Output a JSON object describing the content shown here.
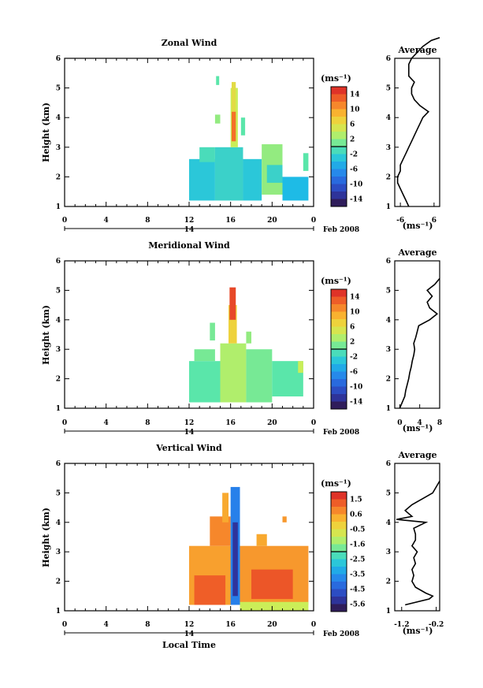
{
  "figure": {
    "x_label": "Local Time",
    "y_label": "Height (km)",
    "x_ticks": [
      "0",
      "4",
      "8",
      "12",
      "16",
      "20",
      "0"
    ],
    "date_day": "14",
    "date_month": "Feb 2008",
    "average_title": "Average",
    "unit": "(ms⁻¹)"
  },
  "chart_data": [
    {
      "type": "heatmap",
      "title": "Zonal Wind",
      "xlabel": "Local Time",
      "ylabel": "Height (km)",
      "xlim": [
        0,
        24
      ],
      "ylim": [
        1,
        6
      ],
      "y_ticks": [
        1,
        2,
        3,
        4,
        5,
        6
      ],
      "colorbar": {
        "unit": "(ms⁻¹)",
        "ticks": [
          "14",
          "10",
          "6",
          "2",
          "-2",
          "-6",
          "-10",
          "-14"
        ],
        "range": [
          -16,
          16
        ]
      },
      "blocks": [
        {
          "t0": 12.0,
          "t1": 14.5,
          "h0": 1.2,
          "h1": 2.6,
          "v": -3
        },
        {
          "t0": 14.5,
          "t1": 17.2,
          "h0": 1.2,
          "h1": 3.0,
          "v": -2
        },
        {
          "t0": 13.0,
          "t1": 14.5,
          "h0": 2.5,
          "h1": 3.0,
          "v": -1
        },
        {
          "t0": 16.0,
          "t1": 16.7,
          "h0": 3.0,
          "h1": 5.0,
          "v": 4
        },
        {
          "t0": 16.1,
          "t1": 16.5,
          "h0": 3.2,
          "h1": 4.2,
          "v": 12
        },
        {
          "t0": 16.1,
          "t1": 16.5,
          "h0": 4.2,
          "h1": 5.2,
          "v": 6
        },
        {
          "t0": 17.2,
          "t1": 19.0,
          "h0": 1.2,
          "h1": 2.6,
          "v": -3
        },
        {
          "t0": 19.0,
          "t1": 21.0,
          "h0": 1.4,
          "h1": 3.1,
          "v": 2
        },
        {
          "t0": 19.5,
          "t1": 21.0,
          "h0": 1.8,
          "h1": 2.4,
          "v": -2
        },
        {
          "t0": 21.0,
          "t1": 23.5,
          "h0": 1.2,
          "h1": 2.0,
          "v": -4
        },
        {
          "t0": 23.0,
          "t1": 23.5,
          "h0": 2.2,
          "h1": 2.8,
          "v": 0
        },
        {
          "t0": 14.5,
          "t1": 15.0,
          "h0": 3.8,
          "h1": 4.1,
          "v": 2
        },
        {
          "t0": 17.0,
          "t1": 17.4,
          "h0": 3.4,
          "h1": 4.0,
          "v": 0
        },
        {
          "t0": 14.6,
          "t1": 14.9,
          "h0": 5.1,
          "h1": 5.4,
          "v": 0
        }
      ],
      "average_profile": {
        "xlim": [
          -8,
          8
        ],
        "x_ticks": [
          -6,
          6
        ],
        "height": [
          1.0,
          1.2,
          1.4,
          1.6,
          1.8,
          2.0,
          2.2,
          2.4,
          2.6,
          2.8,
          3.0,
          3.2,
          3.4,
          3.6,
          3.8,
          4.0,
          4.2,
          4.4,
          4.6,
          4.8,
          5.0,
          5.2,
          5.4,
          5.6,
          5.8,
          6.0,
          6.2,
          6.4,
          6.6,
          6.7
        ],
        "value": [
          -3,
          -4,
          -5,
          -6,
          -7,
          -7,
          -6,
          -6,
          -5,
          -4,
          -3,
          -2,
          -1,
          0,
          1,
          2,
          4,
          1,
          -1,
          -2,
          -2,
          -1,
          -3,
          -3,
          -3,
          -2,
          0,
          2,
          5,
          8
        ]
      }
    },
    {
      "type": "heatmap",
      "title": "Meridional Wind",
      "xlabel": "Local Time",
      "ylabel": "Height (km)",
      "xlim": [
        0,
        24
      ],
      "ylim": [
        1,
        6
      ],
      "y_ticks": [
        1,
        2,
        3,
        4,
        5,
        6
      ],
      "colorbar": {
        "unit": "(ms⁻¹)",
        "ticks": [
          "14",
          "10",
          "6",
          "2",
          "-2",
          "-6",
          "-10",
          "-14"
        ],
        "range": [
          -16,
          16
        ]
      },
      "blocks": [
        {
          "t0": 12.0,
          "t1": 15.0,
          "h0": 1.2,
          "h1": 2.6,
          "v": 0
        },
        {
          "t0": 12.5,
          "t1": 14.5,
          "h0": 2.6,
          "h1": 3.0,
          "v": 1
        },
        {
          "t0": 15.0,
          "t1": 17.5,
          "h0": 1.2,
          "h1": 3.2,
          "v": 3
        },
        {
          "t0": 15.8,
          "t1": 16.6,
          "h0": 3.2,
          "h1": 4.5,
          "v": 7
        },
        {
          "t0": 15.9,
          "t1": 16.5,
          "h0": 4.0,
          "h1": 5.1,
          "v": 14
        },
        {
          "t0": 17.5,
          "t1": 20.0,
          "h0": 1.2,
          "h1": 3.0,
          "v": 1
        },
        {
          "t0": 20.0,
          "t1": 23.0,
          "h0": 1.4,
          "h1": 2.6,
          "v": 0
        },
        {
          "t0": 22.5,
          "t1": 23.0,
          "h0": 2.2,
          "h1": 2.6,
          "v": 4
        },
        {
          "t0": 14.0,
          "t1": 14.5,
          "h0": 3.3,
          "h1": 3.9,
          "v": 1
        },
        {
          "t0": 17.5,
          "t1": 18.0,
          "h0": 3.2,
          "h1": 3.6,
          "v": 2
        }
      ],
      "average_profile": {
        "xlim": [
          -1,
          8
        ],
        "x_ticks": [
          0,
          4,
          8
        ],
        "height": [
          1.0,
          1.2,
          1.4,
          1.6,
          1.8,
          2.0,
          2.2,
          2.4,
          2.6,
          2.8,
          3.0,
          3.2,
          3.4,
          3.6,
          3.8,
          4.0,
          4.2,
          4.4,
          4.6,
          4.8,
          5.0,
          5.2,
          5.4
        ],
        "value": [
          0,
          0.5,
          1,
          1.2,
          1.5,
          1.8,
          2,
          2.3,
          2.5,
          2.8,
          3,
          2.8,
          3.2,
          3.5,
          3.8,
          6,
          7.5,
          6,
          5.5,
          6.5,
          5.5,
          7,
          8
        ]
      }
    },
    {
      "type": "heatmap",
      "title": "Vertical Wind",
      "xlabel": "Local Time",
      "ylabel": "Height (km)",
      "xlim": [
        0,
        24
      ],
      "ylim": [
        1,
        6
      ],
      "y_ticks": [
        1,
        2,
        3,
        4,
        5,
        6
      ],
      "colorbar": {
        "unit": "(ms⁻¹)",
        "ticks": [
          "1.5",
          "0.6",
          "-0.5",
          "-1.6",
          "-2.5",
          "-3.5",
          "-4.5",
          "-5.6"
        ],
        "range": [
          -6.2,
          2.1
        ]
      },
      "blocks": [
        {
          "t0": 12.0,
          "t1": 16.4,
          "h0": 1.2,
          "h1": 3.2,
          "v": 0.5
        },
        {
          "t0": 12.5,
          "t1": 15.5,
          "h0": 1.2,
          "h1": 2.2,
          "v": 1.3
        },
        {
          "t0": 14.0,
          "t1": 16.0,
          "h0": 3.2,
          "h1": 4.2,
          "v": 0.8
        },
        {
          "t0": 16.0,
          "t1": 16.9,
          "h0": 1.2,
          "h1": 5.2,
          "v": -4.0
        },
        {
          "t0": 16.2,
          "t1": 16.7,
          "h0": 1.5,
          "h1": 4.0,
          "v": -5.4
        },
        {
          "t0": 16.9,
          "t1": 23.5,
          "h0": 1.2,
          "h1": 3.2,
          "v": 0.6
        },
        {
          "t0": 18.0,
          "t1": 22.0,
          "h0": 1.4,
          "h1": 2.4,
          "v": 1.4
        },
        {
          "t0": 16.9,
          "t1": 23.5,
          "h0": 1.0,
          "h1": 1.3,
          "v": -1.0
        },
        {
          "t0": 15.2,
          "t1": 15.8,
          "h0": 4.0,
          "h1": 5.0,
          "v": 0.4
        },
        {
          "t0": 18.5,
          "t1": 19.5,
          "h0": 3.2,
          "h1": 3.6,
          "v": 0.4
        },
        {
          "t0": 21.0,
          "t1": 21.4,
          "h0": 4.0,
          "h1": 4.2,
          "v": 0.6
        }
      ],
      "average_profile": {
        "xlim": [
          -1.4,
          -0.1
        ],
        "x_ticks": [
          -1.2,
          -0.2
        ],
        "height": [
          1.2,
          1.4,
          1.5,
          1.6,
          1.8,
          2.0,
          2.2,
          2.4,
          2.6,
          2.8,
          3.0,
          3.2,
          3.4,
          3.6,
          3.8,
          4.0,
          4.1,
          4.2,
          4.4,
          4.6,
          4.8,
          5.0,
          5.2,
          5.4
        ],
        "value": [
          -1.1,
          -0.4,
          -0.3,
          -0.5,
          -0.8,
          -0.9,
          -0.85,
          -0.9,
          -0.8,
          -0.85,
          -0.75,
          -0.9,
          -0.8,
          -0.8,
          -0.85,
          -0.5,
          -1.35,
          -0.9,
          -1.1,
          -0.9,
          -0.6,
          -0.3,
          -0.2,
          -0.1
        ]
      }
    }
  ]
}
